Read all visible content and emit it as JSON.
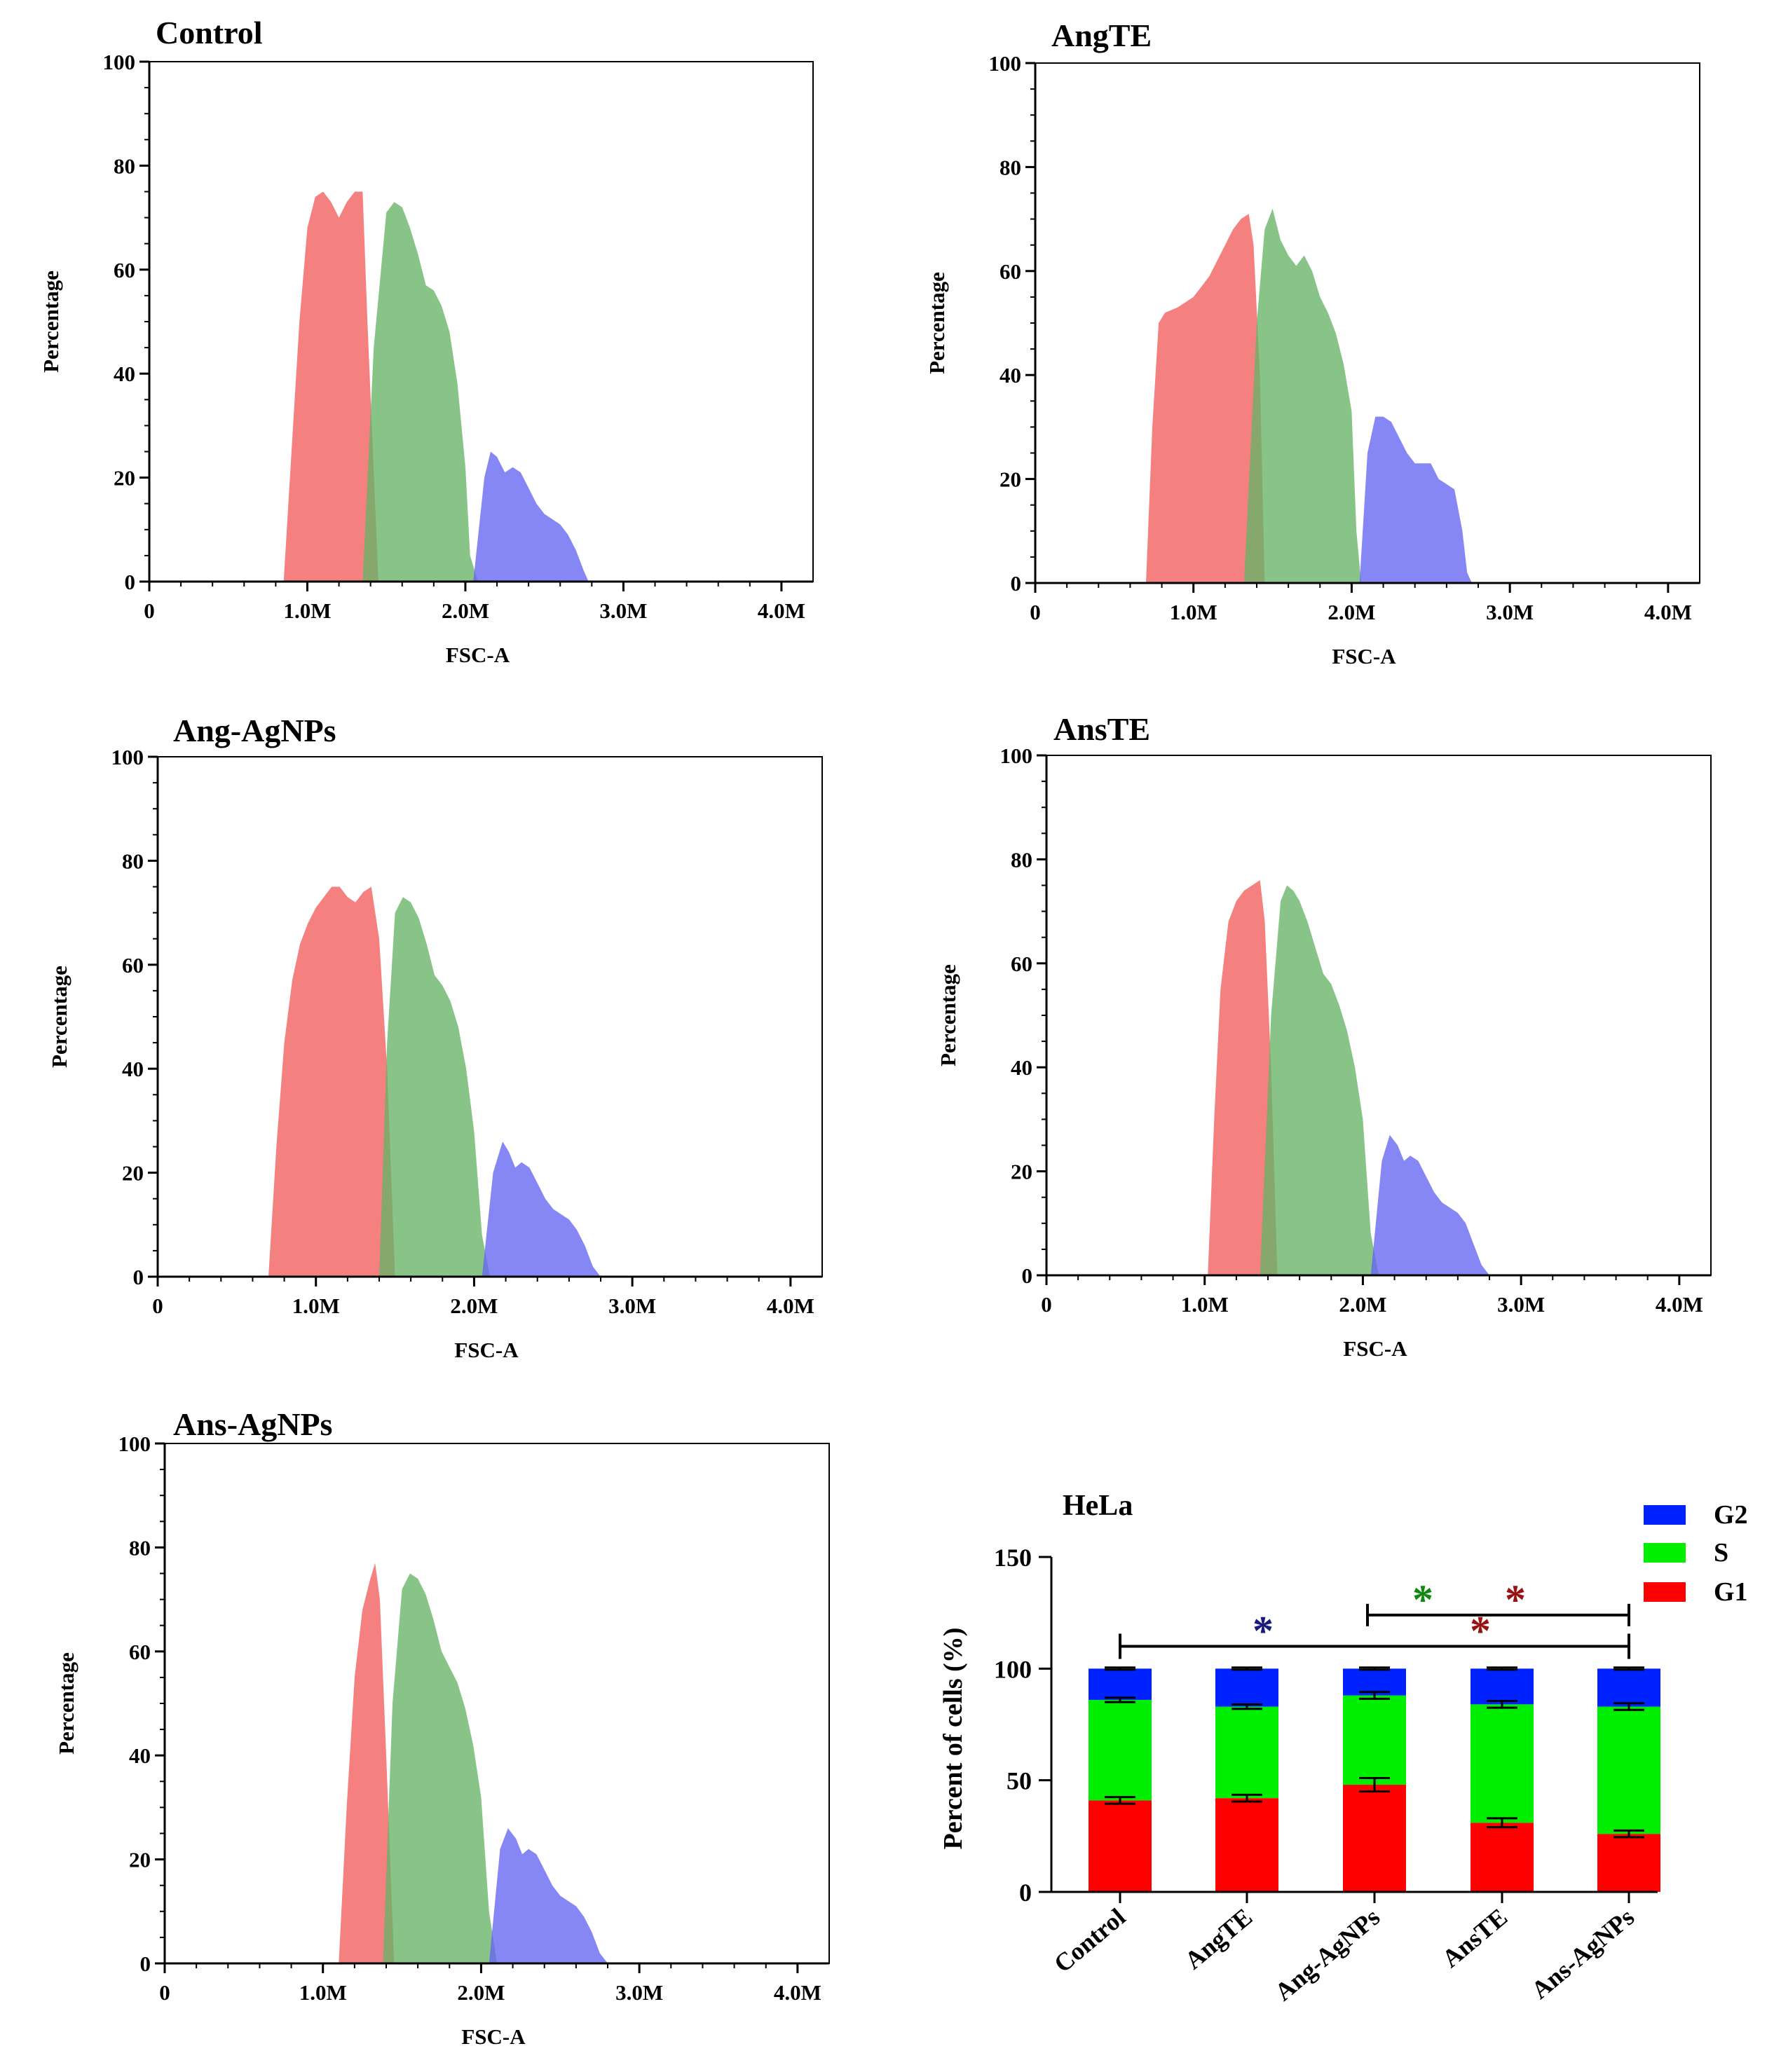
{
  "chart_data": [
    {
      "type": "area",
      "title": "Control",
      "xlabel": "FSC-A",
      "ylabel": "Percentage",
      "xlim": [
        0,
        4200000
      ],
      "ylim": [
        0,
        100
      ],
      "x_ticks": [
        0,
        1000000,
        2000000,
        3000000,
        4000000
      ],
      "x_tick_labels": [
        "0",
        "1.0M",
        "2.0M",
        "3.0M",
        "4.0M"
      ],
      "y_ticks": [
        0,
        20,
        40,
        60,
        80,
        100
      ],
      "y_tick_labels": [
        "0",
        "20",
        "40",
        "60",
        "80",
        "100"
      ],
      "series": [
        {
          "name": "G1",
          "color": "#f25c5c",
          "x": [
            0.85,
            0.9,
            0.95,
            1.0,
            1.05,
            1.1,
            1.15,
            1.2,
            1.25,
            1.3,
            1.35,
            1.38,
            1.45
          ],
          "y": [
            0,
            25,
            50,
            68,
            74,
            75,
            73,
            70,
            73,
            75,
            75,
            50,
            0
          ]
        },
        {
          "name": "S",
          "color": "#66b366",
          "x": [
            1.35,
            1.42,
            1.5,
            1.55,
            1.6,
            1.65,
            1.7,
            1.75,
            1.8,
            1.85,
            1.9,
            1.95,
            2.0,
            2.03,
            2.08
          ],
          "y": [
            0,
            45,
            71,
            73,
            72,
            68,
            63,
            57,
            56,
            53,
            48,
            38,
            22,
            5,
            0
          ]
        },
        {
          "name": "G2",
          "color": "#6464f2",
          "x": [
            2.05,
            2.12,
            2.16,
            2.2,
            2.25,
            2.3,
            2.35,
            2.4,
            2.45,
            2.5,
            2.55,
            2.6,
            2.65,
            2.7,
            2.75,
            2.78
          ],
          "y": [
            0,
            20,
            25,
            24,
            21,
            22,
            21,
            18,
            15,
            13,
            12,
            11,
            9,
            6,
            2,
            0
          ]
        }
      ]
    },
    {
      "type": "area",
      "title": "AngTE",
      "xlabel": "FSC-A",
      "ylabel": "Percentage",
      "xlim": [
        0,
        4200000
      ],
      "ylim": [
        0,
        100
      ],
      "x_ticks": [
        0,
        1000000,
        2000000,
        3000000,
        4000000
      ],
      "x_tick_labels": [
        "0",
        "1.0M",
        "2.0M",
        "3.0M",
        "4.0M"
      ],
      "y_ticks": [
        0,
        20,
        40,
        60,
        80,
        100
      ],
      "y_tick_labels": [
        "0",
        "20",
        "40",
        "60",
        "80",
        "100"
      ],
      "series": [
        {
          "name": "G1",
          "color": "#f25c5c",
          "x": [
            0.7,
            0.74,
            0.78,
            0.82,
            0.9,
            1.0,
            1.05,
            1.1,
            1.15,
            1.2,
            1.25,
            1.3,
            1.35,
            1.38,
            1.42,
            1.45
          ],
          "y": [
            0,
            30,
            50,
            52,
            53,
            55,
            57,
            59,
            62,
            65,
            68,
            70,
            71,
            65,
            40,
            0
          ]
        },
        {
          "name": "S",
          "color": "#66b366",
          "x": [
            1.32,
            1.4,
            1.45,
            1.5,
            1.55,
            1.6,
            1.65,
            1.7,
            1.75,
            1.8,
            1.85,
            1.9,
            1.95,
            2.0,
            2.03,
            2.06
          ],
          "y": [
            0,
            50,
            68,
            72,
            66,
            63,
            61,
            63,
            60,
            55,
            52,
            48,
            42,
            33,
            10,
            0
          ]
        },
        {
          "name": "G2",
          "color": "#6464f2",
          "x": [
            2.05,
            2.1,
            2.15,
            2.2,
            2.25,
            2.3,
            2.35,
            2.4,
            2.45,
            2.5,
            2.55,
            2.6,
            2.65,
            2.7,
            2.73,
            2.76
          ],
          "y": [
            0,
            25,
            32,
            32,
            31,
            28,
            25,
            23,
            23,
            23,
            20,
            19,
            18,
            10,
            2,
            0
          ]
        }
      ]
    },
    {
      "type": "area",
      "title": "Ang-AgNPs",
      "xlabel": "FSC-A",
      "ylabel": "Percentage",
      "xlim": [
        0,
        4200000
      ],
      "ylim": [
        0,
        100
      ],
      "x_ticks": [
        0,
        1000000,
        2000000,
        3000000,
        4000000
      ],
      "x_tick_labels": [
        "0",
        "1.0M",
        "2.0M",
        "3.0M",
        "4.0M"
      ],
      "y_ticks": [
        0,
        20,
        40,
        60,
        80,
        100
      ],
      "y_tick_labels": [
        "0",
        "20",
        "40",
        "60",
        "80",
        "100"
      ],
      "series": [
        {
          "name": "G1",
          "color": "#f25c5c",
          "x": [
            0.7,
            0.75,
            0.8,
            0.85,
            0.9,
            0.95,
            1.0,
            1.05,
            1.1,
            1.15,
            1.2,
            1.25,
            1.3,
            1.35,
            1.4,
            1.45,
            1.5
          ],
          "y": [
            0,
            25,
            45,
            57,
            64,
            68,
            71,
            73,
            75,
            75,
            73,
            72,
            74,
            75,
            65,
            40,
            0
          ]
        },
        {
          "name": "S",
          "color": "#66b366",
          "x": [
            1.4,
            1.45,
            1.5,
            1.55,
            1.6,
            1.65,
            1.7,
            1.75,
            1.8,
            1.85,
            1.9,
            1.95,
            2.0,
            2.05,
            2.1
          ],
          "y": [
            0,
            45,
            70,
            73,
            72,
            69,
            64,
            58,
            56,
            53,
            48,
            40,
            28,
            8,
            0
          ]
        },
        {
          "name": "G2",
          "color": "#6464f2",
          "x": [
            2.05,
            2.12,
            2.18,
            2.22,
            2.26,
            2.3,
            2.35,
            2.4,
            2.45,
            2.5,
            2.55,
            2.6,
            2.65,
            2.7,
            2.75,
            2.8
          ],
          "y": [
            0,
            20,
            26,
            24,
            21,
            22,
            21,
            18,
            15,
            13,
            12,
            11,
            9,
            6,
            2,
            0
          ]
        }
      ]
    },
    {
      "type": "area",
      "title": "AnsTE",
      "xlabel": "FSC-A",
      "ylabel": "Percentage",
      "xlim": [
        0,
        4200000
      ],
      "ylim": [
        0,
        100
      ],
      "x_ticks": [
        0,
        1000000,
        2000000,
        3000000,
        4000000
      ],
      "x_tick_labels": [
        "0",
        "1.0M",
        "2.0M",
        "3.0M",
        "4.0M"
      ],
      "y_ticks": [
        0,
        20,
        40,
        60,
        80,
        100
      ],
      "y_tick_labels": [
        "0",
        "20",
        "40",
        "60",
        "80",
        "100"
      ],
      "series": [
        {
          "name": "G1",
          "color": "#f25c5c",
          "x": [
            1.02,
            1.06,
            1.1,
            1.15,
            1.2,
            1.25,
            1.3,
            1.35,
            1.38,
            1.42,
            1.46
          ],
          "y": [
            0,
            30,
            55,
            68,
            72,
            74,
            75,
            76,
            68,
            40,
            0
          ]
        },
        {
          "name": "S",
          "color": "#66b366",
          "x": [
            1.35,
            1.42,
            1.48,
            1.52,
            1.56,
            1.6,
            1.65,
            1.7,
            1.75,
            1.8,
            1.85,
            1.9,
            1.95,
            2.0,
            2.05,
            2.1
          ],
          "y": [
            0,
            50,
            72,
            75,
            74,
            72,
            68,
            63,
            58,
            56,
            52,
            47,
            40,
            30,
            8,
            0
          ]
        },
        {
          "name": "G2",
          "color": "#6464f2",
          "x": [
            2.05,
            2.12,
            2.17,
            2.22,
            2.26,
            2.3,
            2.35,
            2.4,
            2.45,
            2.5,
            2.55,
            2.6,
            2.65,
            2.7,
            2.75,
            2.8
          ],
          "y": [
            0,
            22,
            27,
            25,
            22,
            23,
            22,
            19,
            16,
            14,
            13,
            12,
            10,
            6,
            2,
            0
          ]
        }
      ]
    },
    {
      "type": "area",
      "title": "Ans-AgNPs",
      "xlabel": "FSC-A",
      "ylabel": "Percentage",
      "xlim": [
        0,
        4200000
      ],
      "ylim": [
        0,
        100
      ],
      "x_ticks": [
        0,
        1000000,
        2000000,
        3000000,
        4000000
      ],
      "x_tick_labels": [
        "0",
        "1.0M",
        "2.0M",
        "3.0M",
        "4.0M"
      ],
      "y_ticks": [
        0,
        20,
        40,
        60,
        80,
        100
      ],
      "y_tick_labels": [
        "0",
        "20",
        "40",
        "60",
        "80",
        "100"
      ],
      "series": [
        {
          "name": "G1",
          "color": "#f25c5c",
          "x": [
            1.1,
            1.15,
            1.2,
            1.25,
            1.3,
            1.33,
            1.36,
            1.4,
            1.45
          ],
          "y": [
            0,
            30,
            55,
            68,
            74,
            77,
            70,
            40,
            0
          ]
        },
        {
          "name": "S",
          "color": "#66b366",
          "x": [
            1.38,
            1.44,
            1.5,
            1.55,
            1.6,
            1.65,
            1.7,
            1.75,
            1.8,
            1.85,
            1.9,
            1.95,
            2.0,
            2.05,
            2.1
          ],
          "y": [
            0,
            50,
            72,
            75,
            74,
            71,
            66,
            60,
            57,
            54,
            49,
            42,
            32,
            10,
            0
          ]
        },
        {
          "name": "G2",
          "color": "#6464f2",
          "x": [
            2.05,
            2.12,
            2.17,
            2.22,
            2.26,
            2.3,
            2.35,
            2.4,
            2.45,
            2.5,
            2.55,
            2.6,
            2.65,
            2.7,
            2.75,
            2.8
          ],
          "y": [
            0,
            22,
            26,
            24,
            21,
            22,
            21,
            18,
            15,
            13,
            12,
            11,
            9,
            6,
            2,
            0
          ]
        }
      ]
    },
    {
      "type": "bar",
      "stacked": true,
      "title": "HeLa",
      "xlabel": "",
      "ylabel": "Percent of cells (%)",
      "ylim": [
        0,
        150
      ],
      "y_ticks": [
        0,
        50,
        100,
        150
      ],
      "y_tick_labels": [
        "0",
        "50",
        "100",
        "150"
      ],
      "categories": [
        "Control",
        "AngTE",
        "Ang-AgNPs",
        "AnsTE",
        "Ans-AgNPs"
      ],
      "series": [
        {
          "name": "G1",
          "color": "#ff0000",
          "values": [
            41,
            42,
            48,
            31,
            26
          ],
          "errors": [
            1.5,
            1.5,
            3,
            2,
            1.5
          ]
        },
        {
          "name": "S",
          "color": "#00ee00",
          "values": [
            45,
            41,
            40,
            53,
            57
          ],
          "errors": [
            1,
            1,
            1.5,
            1.5,
            1.5
          ]
        },
        {
          "name": "G2",
          "color": "#0022ff",
          "values": [
            14,
            17,
            12,
            16,
            17
          ],
          "errors": [
            0.5,
            0.5,
            0.5,
            0.5,
            0.5
          ]
        }
      ],
      "legend": {
        "position": "top-right",
        "entries": [
          "G2",
          "S",
          "G1"
        ]
      },
      "annotations": [
        {
          "from": "Control",
          "to": "Ans-AgNPs",
          "level": 110,
          "marks": [
            {
              "text": "*",
              "color": "#1a1a7a"
            }
          ]
        },
        {
          "from": "Ang-AgNPs",
          "to": "Ans-AgNPs",
          "level": 124,
          "marks": [
            {
              "text": "*",
              "color": "#118811"
            },
            {
              "text": "*",
              "color": "#991111"
            }
          ]
        },
        {
          "from": "AnsTE",
          "to": "AnsTE",
          "level": 110,
          "marks": [
            {
              "text": "*",
              "color": "#991111"
            }
          ]
        }
      ]
    }
  ]
}
